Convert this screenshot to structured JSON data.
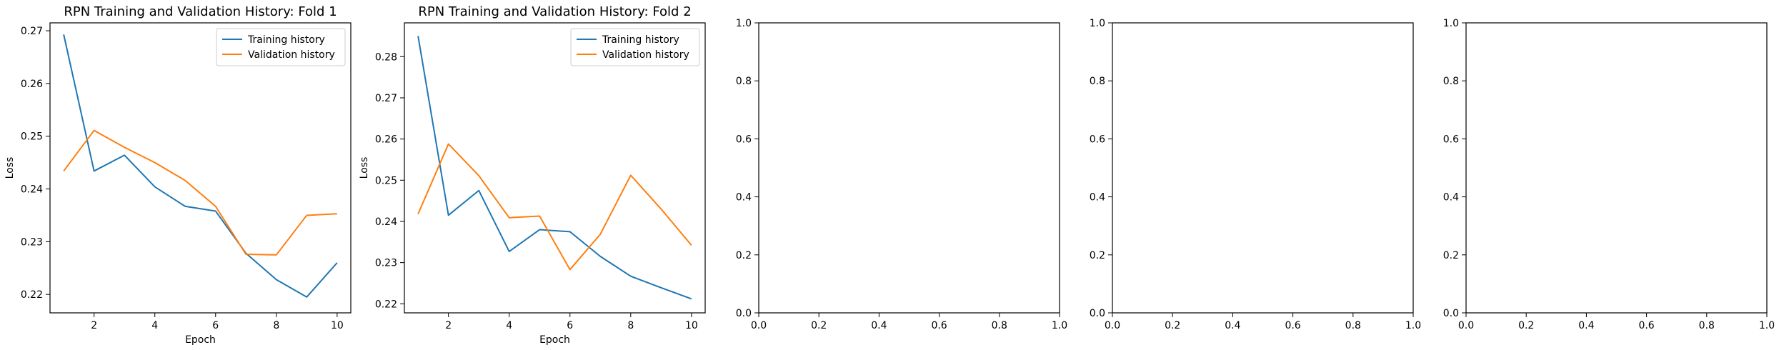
{
  "chart_data": [
    {
      "type": "line",
      "title": "RPN Training and Validation History: Fold 1",
      "xlabel": "Epoch",
      "ylabel": "Loss",
      "xlim": [
        0.55,
        10.45
      ],
      "ylim": [
        0.2165,
        0.2715
      ],
      "xticks": [
        2,
        4,
        6,
        8,
        10
      ],
      "yticks": [
        0.22,
        0.23,
        0.24,
        0.25,
        0.26,
        0.27
      ],
      "legend": "top-right",
      "x": [
        1,
        2,
        3,
        4,
        5,
        6,
        7,
        8,
        9,
        10
      ],
      "series": [
        {
          "name": "Training history",
          "color": "#1f77b4",
          "values": [
            0.2693,
            0.2434,
            0.2464,
            0.2404,
            0.2367,
            0.2358,
            0.2278,
            0.2228,
            0.2195,
            0.226
          ]
        },
        {
          "name": "Validation history",
          "color": "#ff7f0e",
          "values": [
            0.2434,
            0.2511,
            0.2479,
            0.245,
            0.2416,
            0.2367,
            0.2276,
            0.2275,
            0.235,
            0.2353
          ]
        }
      ]
    },
    {
      "type": "line",
      "title": "RPN Training and Validation History: Fold 2",
      "xlabel": "Epoch",
      "ylabel": "Loss",
      "xlim": [
        0.55,
        10.45
      ],
      "ylim": [
        0.2178,
        0.2882
      ],
      "xticks": [
        2,
        4,
        6,
        8,
        10
      ],
      "yticks": [
        0.22,
        0.23,
        0.24,
        0.25,
        0.26,
        0.27,
        0.28
      ],
      "legend": "top-right",
      "x": [
        1,
        2,
        3,
        4,
        5,
        6,
        7,
        8,
        9,
        10
      ],
      "series": [
        {
          "name": "Training history",
          "color": "#1f77b4",
          "values": [
            0.285,
            0.2415,
            0.2475,
            0.2327,
            0.238,
            0.2375,
            0.2315,
            0.2267,
            0.2239,
            0.2212
          ]
        },
        {
          "name": "Validation history",
          "color": "#ff7f0e",
          "values": [
            0.2418,
            0.2588,
            0.2511,
            0.2409,
            0.2413,
            0.2283,
            0.2369,
            0.2512,
            0.243,
            0.2342
          ]
        }
      ]
    },
    {
      "type": "line",
      "title": "",
      "xlabel": "",
      "ylabel": "",
      "xlim": [
        0,
        1
      ],
      "ylim": [
        0,
        1
      ],
      "xticks": [
        0.0,
        0.2,
        0.4,
        0.6,
        0.8,
        1.0
      ],
      "yticks": [
        0.0,
        0.2,
        0.4,
        0.6,
        0.8,
        1.0
      ],
      "series": []
    },
    {
      "type": "line",
      "title": "",
      "xlabel": "",
      "ylabel": "",
      "xlim": [
        0,
        1
      ],
      "ylim": [
        0,
        1
      ],
      "xticks": [
        0.0,
        0.2,
        0.4,
        0.6,
        0.8,
        1.0
      ],
      "yticks": [
        0.0,
        0.2,
        0.4,
        0.6,
        0.8,
        1.0
      ],
      "series": []
    },
    {
      "type": "line",
      "title": "",
      "xlabel": "",
      "ylabel": "",
      "xlim": [
        0,
        1
      ],
      "ylim": [
        0,
        1
      ],
      "xticks": [
        0.0,
        0.2,
        0.4,
        0.6,
        0.8,
        1.0
      ],
      "yticks": [
        0.0,
        0.2,
        0.4,
        0.6,
        0.8,
        1.0
      ],
      "series": []
    }
  ]
}
